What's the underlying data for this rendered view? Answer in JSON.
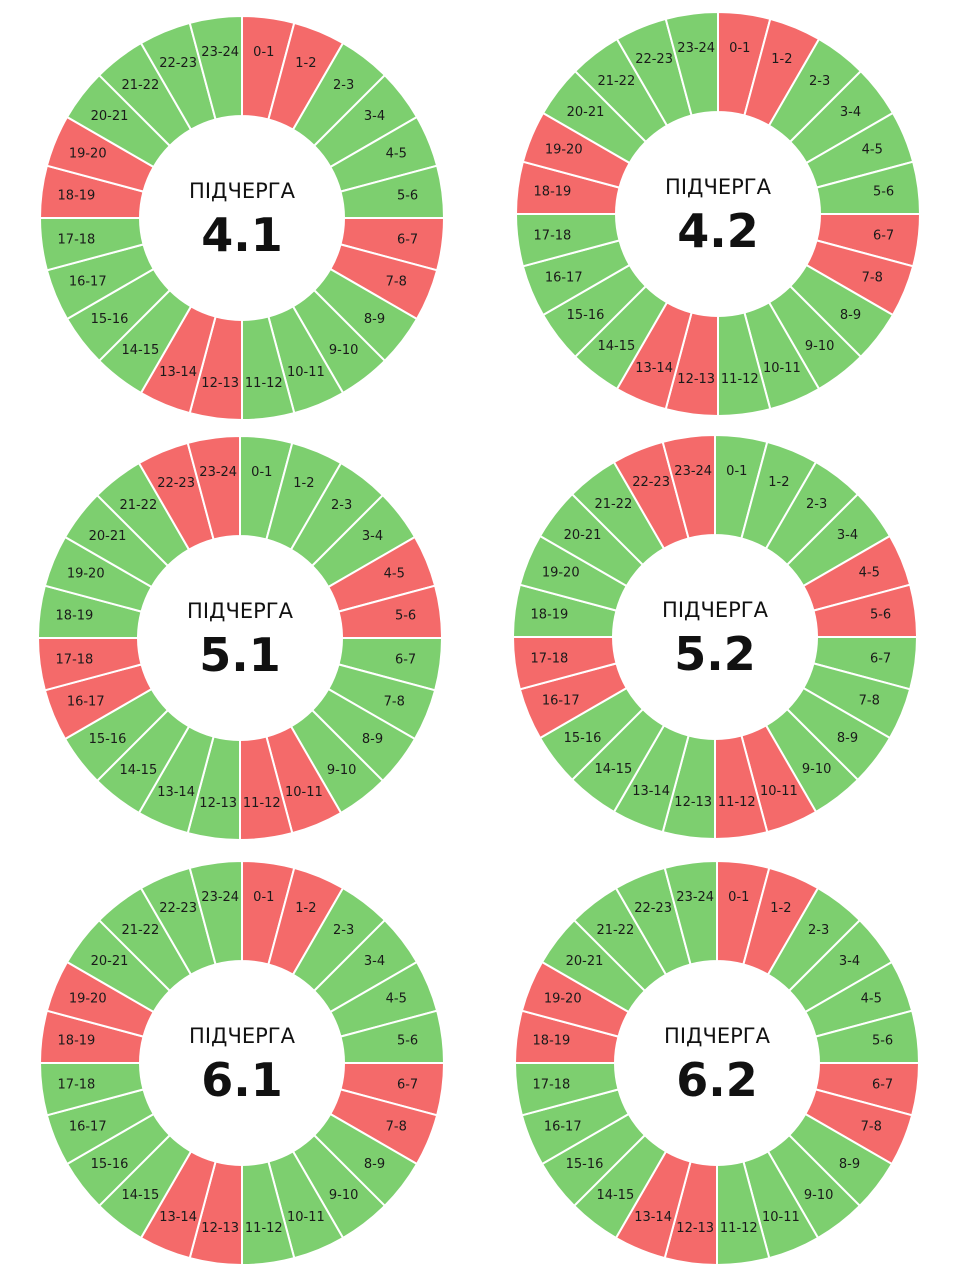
{
  "colors": {
    "on": "#7dcf6f",
    "off": "#f46a6a",
    "separator": "#ffffff"
  },
  "hour_labels": [
    "0-1",
    "1-2",
    "2-3",
    "3-4",
    "4-5",
    "5-6",
    "6-7",
    "7-8",
    "8-9",
    "9-10",
    "10-11",
    "11-12",
    "12-13",
    "13-14",
    "14-15",
    "15-16",
    "16-17",
    "17-18",
    "18-19",
    "19-20",
    "20-21",
    "21-22",
    "22-23",
    "23-24"
  ],
  "chart_data": [
    {
      "type": "pie",
      "caption": "ПІДЧЕРГА",
      "number": "4.1",
      "off_hours": [
        "0-1",
        "1-2",
        "6-7",
        "7-8",
        "12-13",
        "13-14",
        "18-19",
        "19-20"
      ]
    },
    {
      "type": "pie",
      "caption": "ПІДЧЕРГА",
      "number": "4.2",
      "off_hours": [
        "0-1",
        "1-2",
        "6-7",
        "7-8",
        "12-13",
        "13-14",
        "18-19",
        "19-20"
      ]
    },
    {
      "type": "pie",
      "caption": "ПІДЧЕРГА",
      "number": "5.1",
      "off_hours": [
        "4-5",
        "5-6",
        "10-11",
        "11-12",
        "16-17",
        "17-18",
        "22-23",
        "23-24"
      ]
    },
    {
      "type": "pie",
      "caption": "ПІДЧЕРГА",
      "number": "5.2",
      "off_hours": [
        "4-5",
        "5-6",
        "10-11",
        "11-12",
        "16-17",
        "17-18",
        "22-23",
        "23-24"
      ]
    },
    {
      "type": "pie",
      "caption": "ПІДЧЕРГА",
      "number": "6.1",
      "off_hours": [
        "0-1",
        "1-2",
        "6-7",
        "7-8",
        "12-13",
        "13-14",
        "18-19",
        "19-20"
      ]
    },
    {
      "type": "pie",
      "caption": "ПІДЧЕРГА",
      "number": "6.2",
      "off_hours": [
        "0-1",
        "1-2",
        "6-7",
        "7-8",
        "12-13",
        "13-14",
        "18-19",
        "19-20"
      ]
    }
  ]
}
